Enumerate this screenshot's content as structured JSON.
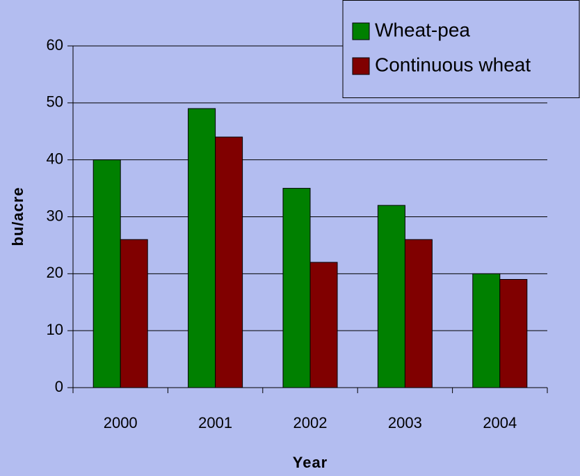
{
  "chart_data": {
    "type": "bar",
    "categories": [
      "2000",
      "2001",
      "2002",
      "2003",
      "2004"
    ],
    "series": [
      {
        "name": "Wheat-pea",
        "color": "#008000",
        "values": [
          40,
          49,
          35,
          32,
          20
        ]
      },
      {
        "name": "Continuous wheat",
        "color": "#800000",
        "values": [
          26,
          44,
          22,
          26,
          19
        ]
      }
    ],
    "xlabel": "Year",
    "ylabel": "bu/acre",
    "ylim": [
      0,
      60
    ],
    "yticks": [
      0,
      10,
      20,
      30,
      40,
      50,
      60
    ],
    "grid": true,
    "legend": "top-right"
  }
}
